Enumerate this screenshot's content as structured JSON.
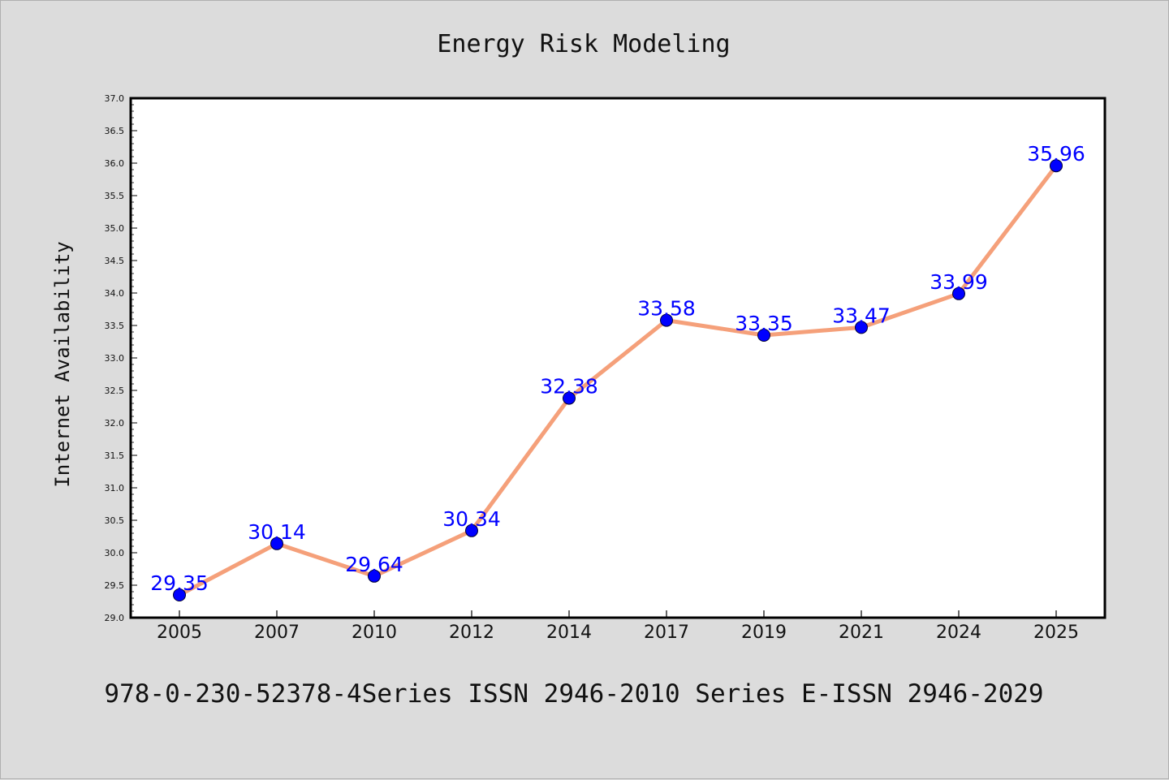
{
  "chart_data": {
    "type": "line",
    "title": "Energy Risk Modeling",
    "xlabel": "",
    "ylabel": "Internet Availability",
    "categories": [
      "2005",
      "2007",
      "2010",
      "2012",
      "2014",
      "2017",
      "2019",
      "2021",
      "2024",
      "2025"
    ],
    "series": [
      {
        "values": [
          29.35,
          30.14,
          29.64,
          30.34,
          32.38,
          33.58,
          33.35,
          33.47,
          33.99,
          35.96
        ]
      }
    ],
    "ylim": [
      29.0,
      37.0
    ],
    "yticks": [
      "29.0",
      "29.5",
      "30.0",
      "30.5",
      "31.0",
      "31.5",
      "32.0",
      "32.5",
      "33.0",
      "33.5",
      "34.0",
      "34.5",
      "35.0",
      "35.5",
      "36.0",
      "36.5",
      "37.0"
    ],
    "data_labels": [
      "29.35",
      "30.14",
      "29.64",
      "30.34",
      "32.38",
      "33.58",
      "33.35",
      "33.47",
      "33.99",
      "35.96"
    ],
    "grid": false,
    "legend": "none",
    "line_color": "#f5a07a",
    "marker_color": "#0000ff",
    "label_color": "#0000ff"
  },
  "footer": "978-0-230-52378-4Series ISSN 2946-2010 Series E-ISSN 2946-2029"
}
